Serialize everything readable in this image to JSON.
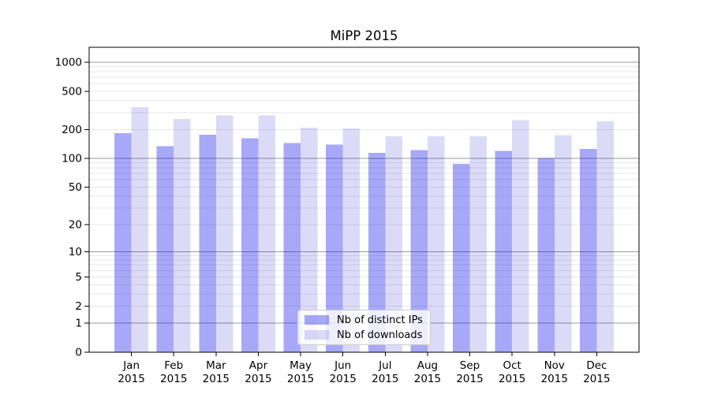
{
  "chart_data": {
    "type": "bar",
    "title": "MiPP 2015",
    "x_tick_line1": [
      "Jan",
      "Feb",
      "Mar",
      "Apr",
      "May",
      "Jun",
      "Jul",
      "Aug",
      "Sep",
      "Oct",
      "Nov",
      "Dec"
    ],
    "x_tick_line2": "2015",
    "series": [
      {
        "name": "Nb of distinct IPs",
        "fill": "rgba(0,0,235,0.34)",
        "values": [
          184,
          134,
          177,
          162,
          145,
          140,
          115,
          122,
          88,
          120,
          101,
          126
        ]
      },
      {
        "name": "Nb of downloads",
        "fill": "rgba(0,0,204,0.14)",
        "values": [
          342,
          258,
          280,
          280,
          209,
          205,
          171,
          170,
          170,
          252,
          175,
          245
        ]
      }
    ],
    "y_axis": {
      "scale": "log1p",
      "tick_labels": [
        "1000",
        "500",
        "200",
        "100",
        "50",
        "20",
        "10",
        "5",
        "2",
        "1",
        "0"
      ],
      "tick_values": [
        1000,
        500,
        200,
        100,
        50,
        20,
        10,
        5,
        2,
        1,
        0
      ],
      "major_grid_values": [
        1,
        10,
        100,
        1000
      ],
      "ylim": [
        0,
        1430
      ]
    },
    "legend_position": "lower center",
    "grid": "both",
    "colors": {
      "major_grid": "#9b9b9b",
      "minor_grid": "#e7e7e7",
      "axis": "#000000",
      "legend_border": "#cccccc",
      "legend_bg": "rgba(255,255,255,0.8)"
    }
  }
}
